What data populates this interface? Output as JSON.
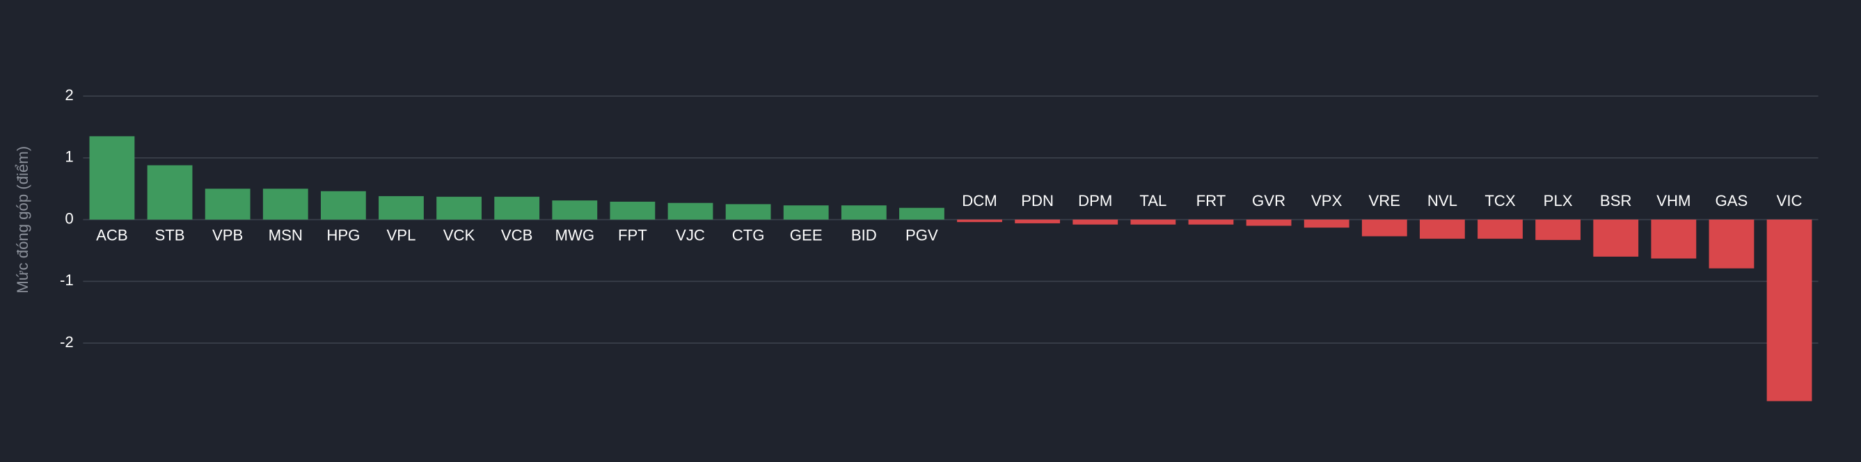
{
  "chart_data": {
    "type": "bar",
    "y_label": "Mức đóng góp (điểm)",
    "categories": [
      "ACB",
      "STB",
      "VPB",
      "MSN",
      "HPG",
      "VPL",
      "VCK",
      "VCB",
      "MWG",
      "FPT",
      "VJC",
      "CTG",
      "GEE",
      "BID",
      "PGV",
      "DCM",
      "PDN",
      "DPM",
      "TAL",
      "FRT",
      "GVR",
      "VPX",
      "VRE",
      "NVL",
      "TCX",
      "PLX",
      "BSR",
      "VHM",
      "GAS",
      "VIC"
    ],
    "values": [
      1.35,
      0.88,
      0.5,
      0.5,
      0.46,
      0.38,
      0.37,
      0.37,
      0.31,
      0.29,
      0.27,
      0.25,
      0.23,
      0.23,
      0.19,
      -0.04,
      -0.06,
      -0.08,
      -0.08,
      -0.08,
      -0.1,
      -0.13,
      -0.27,
      -0.31,
      -0.31,
      -0.33,
      -0.6,
      -0.63,
      -0.79,
      -2.94
    ],
    "positive_color": "#3f9a5e",
    "negative_color": "#d9474b",
    "ylim": [
      -3,
      2.4
    ],
    "yticks": [
      2,
      1,
      0,
      -1,
      -2
    ],
    "grid": true
  }
}
